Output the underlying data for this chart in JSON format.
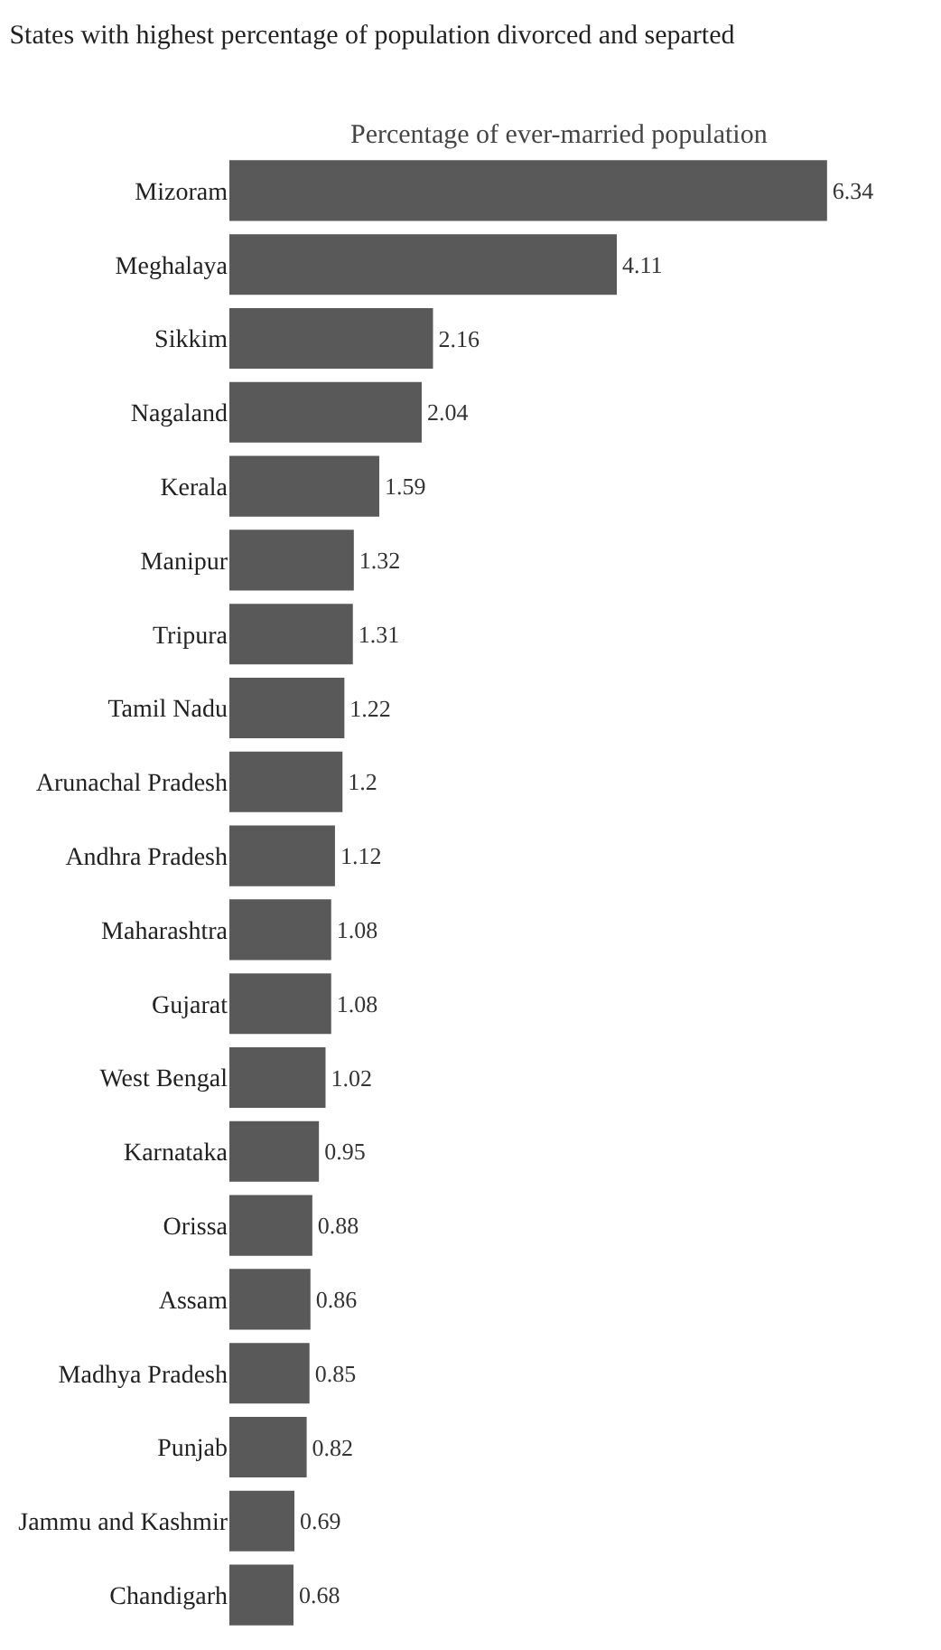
{
  "chart_data": {
    "type": "bar",
    "orientation": "horizontal",
    "title": "States with highest percentage of population divorced and separted",
    "subtitle": "Percentage of ever-married population",
    "categories": [
      "Mizoram",
      "Meghalaya",
      "Sikkim",
      "Nagaland",
      "Kerala",
      "Manipur",
      "Tripura",
      "Tamil Nadu",
      "Arunachal Pradesh",
      "Andhra Pradesh",
      "Maharashtra",
      "Gujarat",
      "West Bengal",
      "Karnataka",
      "Orissa",
      "Assam",
      "Madhya Pradesh",
      "Punjab",
      "Jammu and Kashmir",
      "Chandigarh"
    ],
    "values": [
      6.34,
      4.11,
      2.16,
      2.04,
      1.59,
      1.32,
      1.31,
      1.22,
      1.2,
      1.12,
      1.08,
      1.08,
      1.02,
      0.95,
      0.88,
      0.86,
      0.85,
      0.82,
      0.69,
      0.68
    ],
    "color": "#595959",
    "data_labels": true
  }
}
